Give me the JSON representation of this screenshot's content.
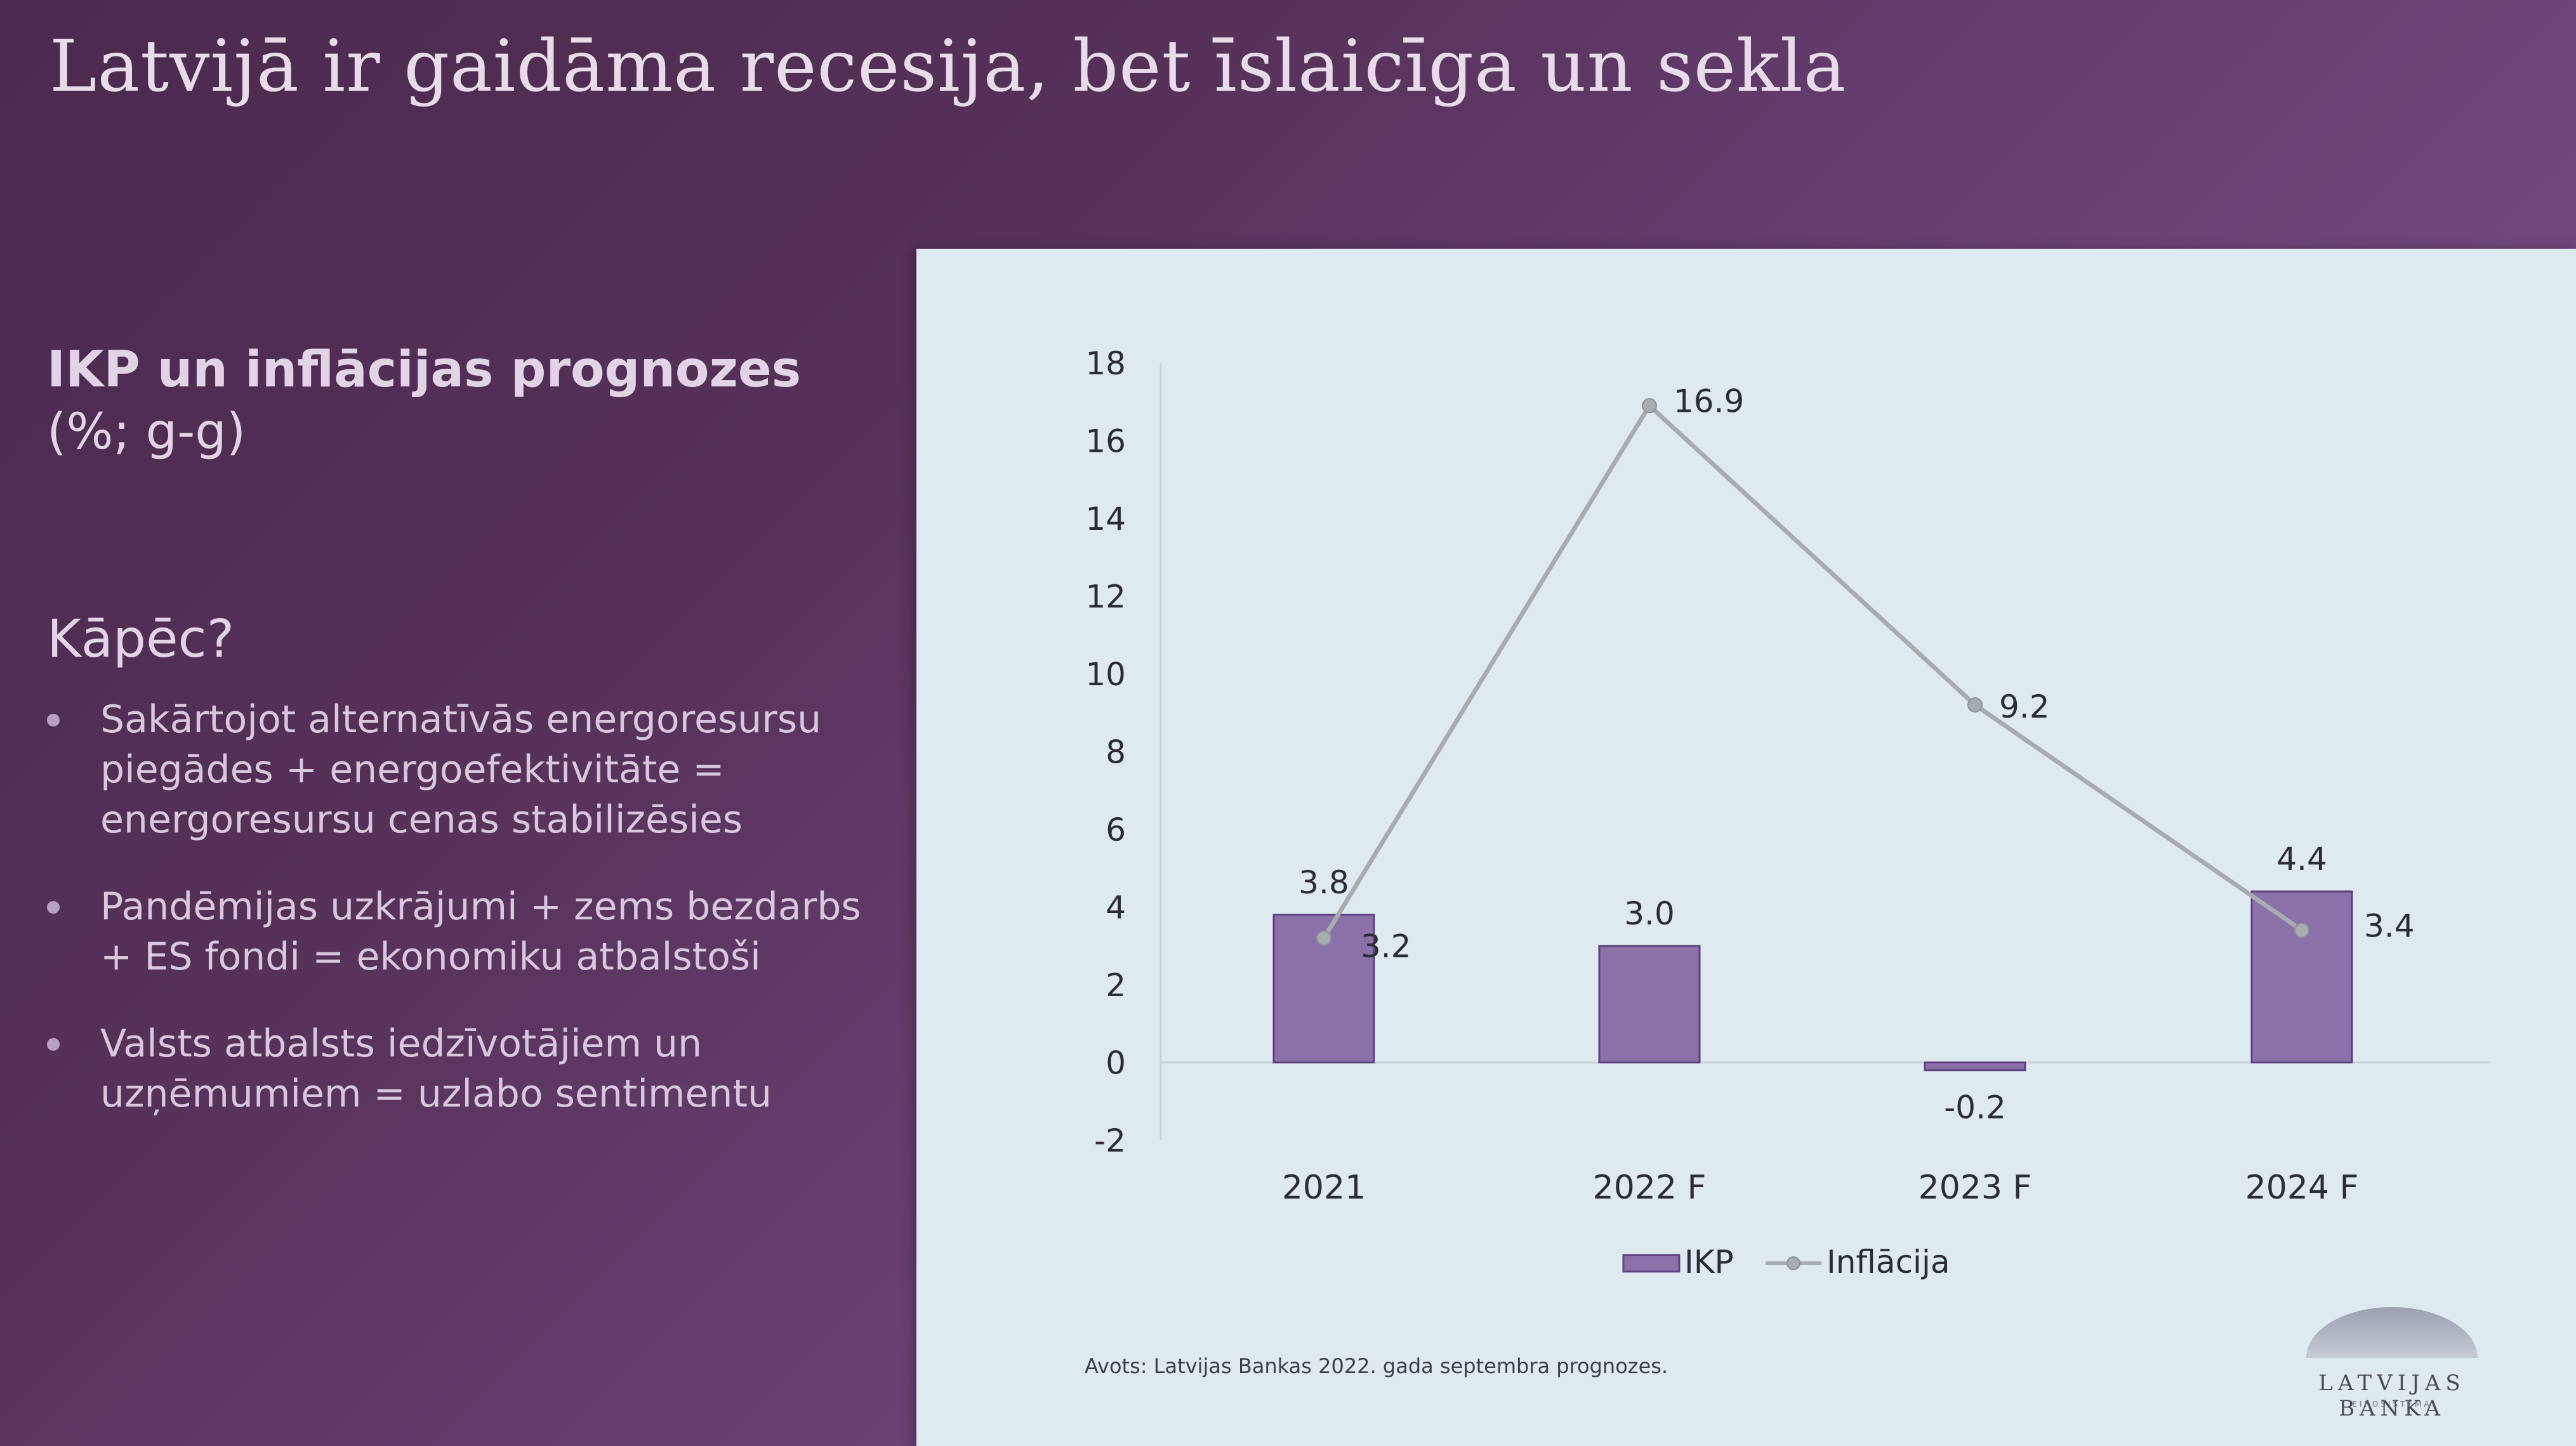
{
  "slide": {
    "title": "Latvijā ir gaidāma recesija, bet īslaicīga un sekla",
    "subtitle": "IKP un inflācijas prognozes",
    "unit": "(%; g-g)",
    "why_heading": "Kāpēc?",
    "bullets": [
      "Sakārtojot alternatīvās energoresursu piegādes + energoefektivitāte = energoresursu cenas stabilizēsies",
      "Pandēmijas uzkrājumi + zems bezdarbs + ES fondi = ekonomiku atbalstoši",
      "Valsts atbalsts iedzīvotājiem un uzņēmumiem = uzlabo sentimentu"
    ],
    "source": "Avots: Latvijas Bankas 2022. gada septembra prognozes.",
    "logo_text": "LATVIJAS BANKA",
    "logo_subtext": "EIROSISTĒMA"
  },
  "colors": {
    "bar": "#8a72a9",
    "bar_stroke": "#5e3f7f",
    "line": "#a6acb0",
    "axis_text": "#2c2c38"
  },
  "chart_data": {
    "type": "bar",
    "title": "IKP un inflācijas prognozes",
    "categories": [
      "2021",
      "2022 F",
      "2023 F",
      "2024 F"
    ],
    "ylim": [
      -2,
      18
    ],
    "yticks": [
      18,
      16,
      14,
      12,
      10,
      8,
      6,
      4,
      2,
      0,
      -2
    ],
    "grid": false,
    "legend_position": "bottom-center",
    "series": [
      {
        "name": "IKP",
        "type": "bar",
        "values": [
          3.8,
          3.0,
          -0.2,
          4.4
        ],
        "labels": [
          "3.8",
          "3.0",
          "-0.2",
          "4.4"
        ]
      },
      {
        "name": "Inflācija",
        "type": "line",
        "values": [
          3.2,
          16.9,
          9.2,
          3.4
        ],
        "labels": [
          "3.2",
          "16.9",
          "9.2",
          "3.4"
        ]
      }
    ]
  }
}
